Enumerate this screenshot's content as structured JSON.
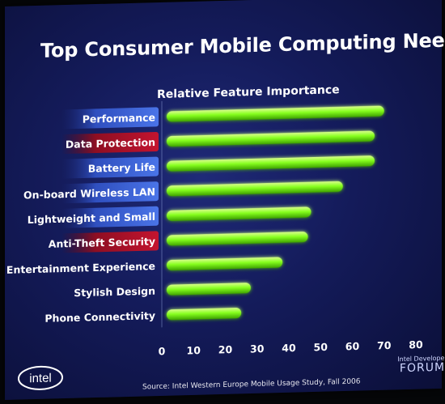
{
  "slide": {
    "title": "Top Consumer Mobile Computing Needs",
    "source": "Source:  Intel Western Europe Mobile Usage Study, Fall 2006",
    "logo_text": "intel",
    "forum_top": "Intel Developer",
    "forum_main": "FORUM"
  },
  "colors": {
    "background": "#141b5a",
    "bar": "#7cff1a",
    "label_blue": "#3c63d6",
    "label_red": "#b0112a"
  },
  "chart_data": {
    "type": "bar",
    "orientation": "horizontal",
    "title": "Relative Feature Importance",
    "xlabel": "",
    "ylabel": "",
    "xlim": [
      0,
      80
    ],
    "xticks": [
      "0",
      "10",
      "20",
      "30",
      "40",
      "50",
      "60",
      "70",
      "80"
    ],
    "categories": [
      "Performance",
      "Data Protection",
      "Battery Life",
      "On-board Wireless LAN",
      "Lightweight and Small",
      "Anti-Theft Security",
      "Entertainment Experience",
      "Stylish Design",
      "Phone Connectivity"
    ],
    "values": [
      70,
      67,
      67,
      57,
      47,
      46,
      38,
      28,
      25
    ],
    "label_styles": [
      "blue",
      "red",
      "blue",
      "blue",
      "blue",
      "red",
      "plain",
      "plain",
      "plain"
    ],
    "grid": false,
    "legend": "none"
  }
}
